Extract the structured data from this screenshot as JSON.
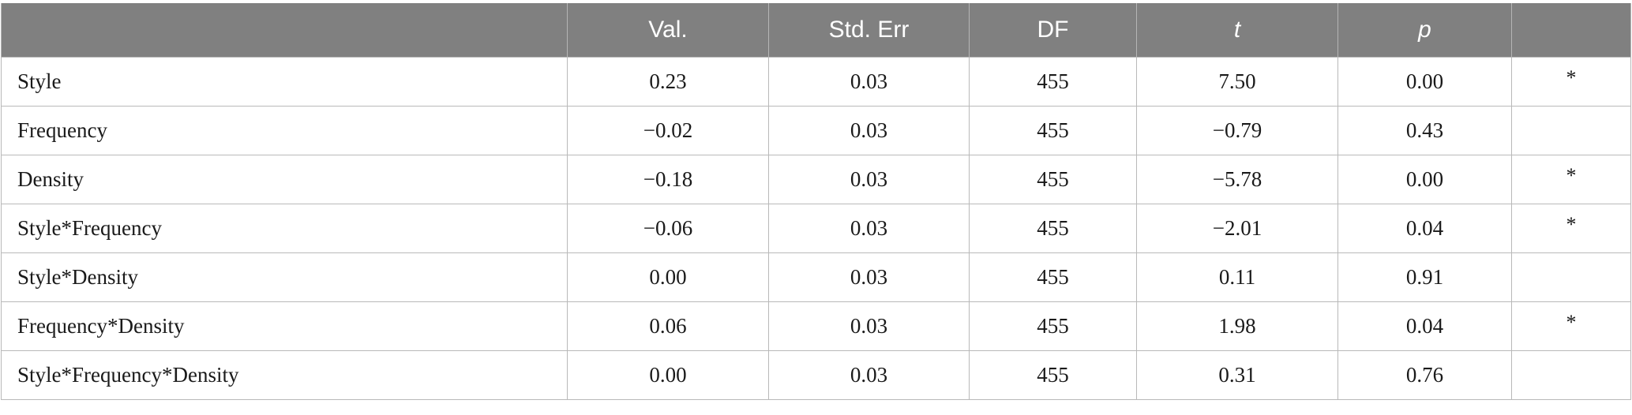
{
  "table": {
    "headers": [
      "",
      "Val.",
      "Std. Err",
      "DF",
      "t",
      "p",
      ""
    ],
    "rows": [
      {
        "term": "Style",
        "val": "0.23",
        "se": "0.03",
        "df": "455",
        "t": "7.50",
        "p": "0.00",
        "sig": "*"
      },
      {
        "term": "Frequency",
        "val": "−0.02",
        "se": "0.03",
        "df": "455",
        "t": "−0.79",
        "p": "0.43",
        "sig": ""
      },
      {
        "term": "Density",
        "val": "−0.18",
        "se": "0.03",
        "df": "455",
        "t": "−5.78",
        "p": "0.00",
        "sig": "*"
      },
      {
        "term": "Style*Frequency",
        "val": "−0.06",
        "se": "0.03",
        "df": "455",
        "t": "−2.01",
        "p": "0.04",
        "sig": "*"
      },
      {
        "term": "Style*Density",
        "val": "0.00",
        "se": "0.03",
        "df": "455",
        "t": "0.11",
        "p": "0.91",
        "sig": ""
      },
      {
        "term": "Frequency*Density",
        "val": "0.06",
        "se": "0.03",
        "df": "455",
        "t": "1.98",
        "p": "0.04",
        "sig": "*"
      },
      {
        "term": "Style*Frequency*Density",
        "val": "0.00",
        "se": "0.03",
        "df": "455",
        "t": "0.31",
        "p": "0.76",
        "sig": ""
      }
    ]
  },
  "colors": {
    "header_bg": "#808080",
    "header_text": "#ffffff",
    "grid": "#b9b9b9"
  }
}
